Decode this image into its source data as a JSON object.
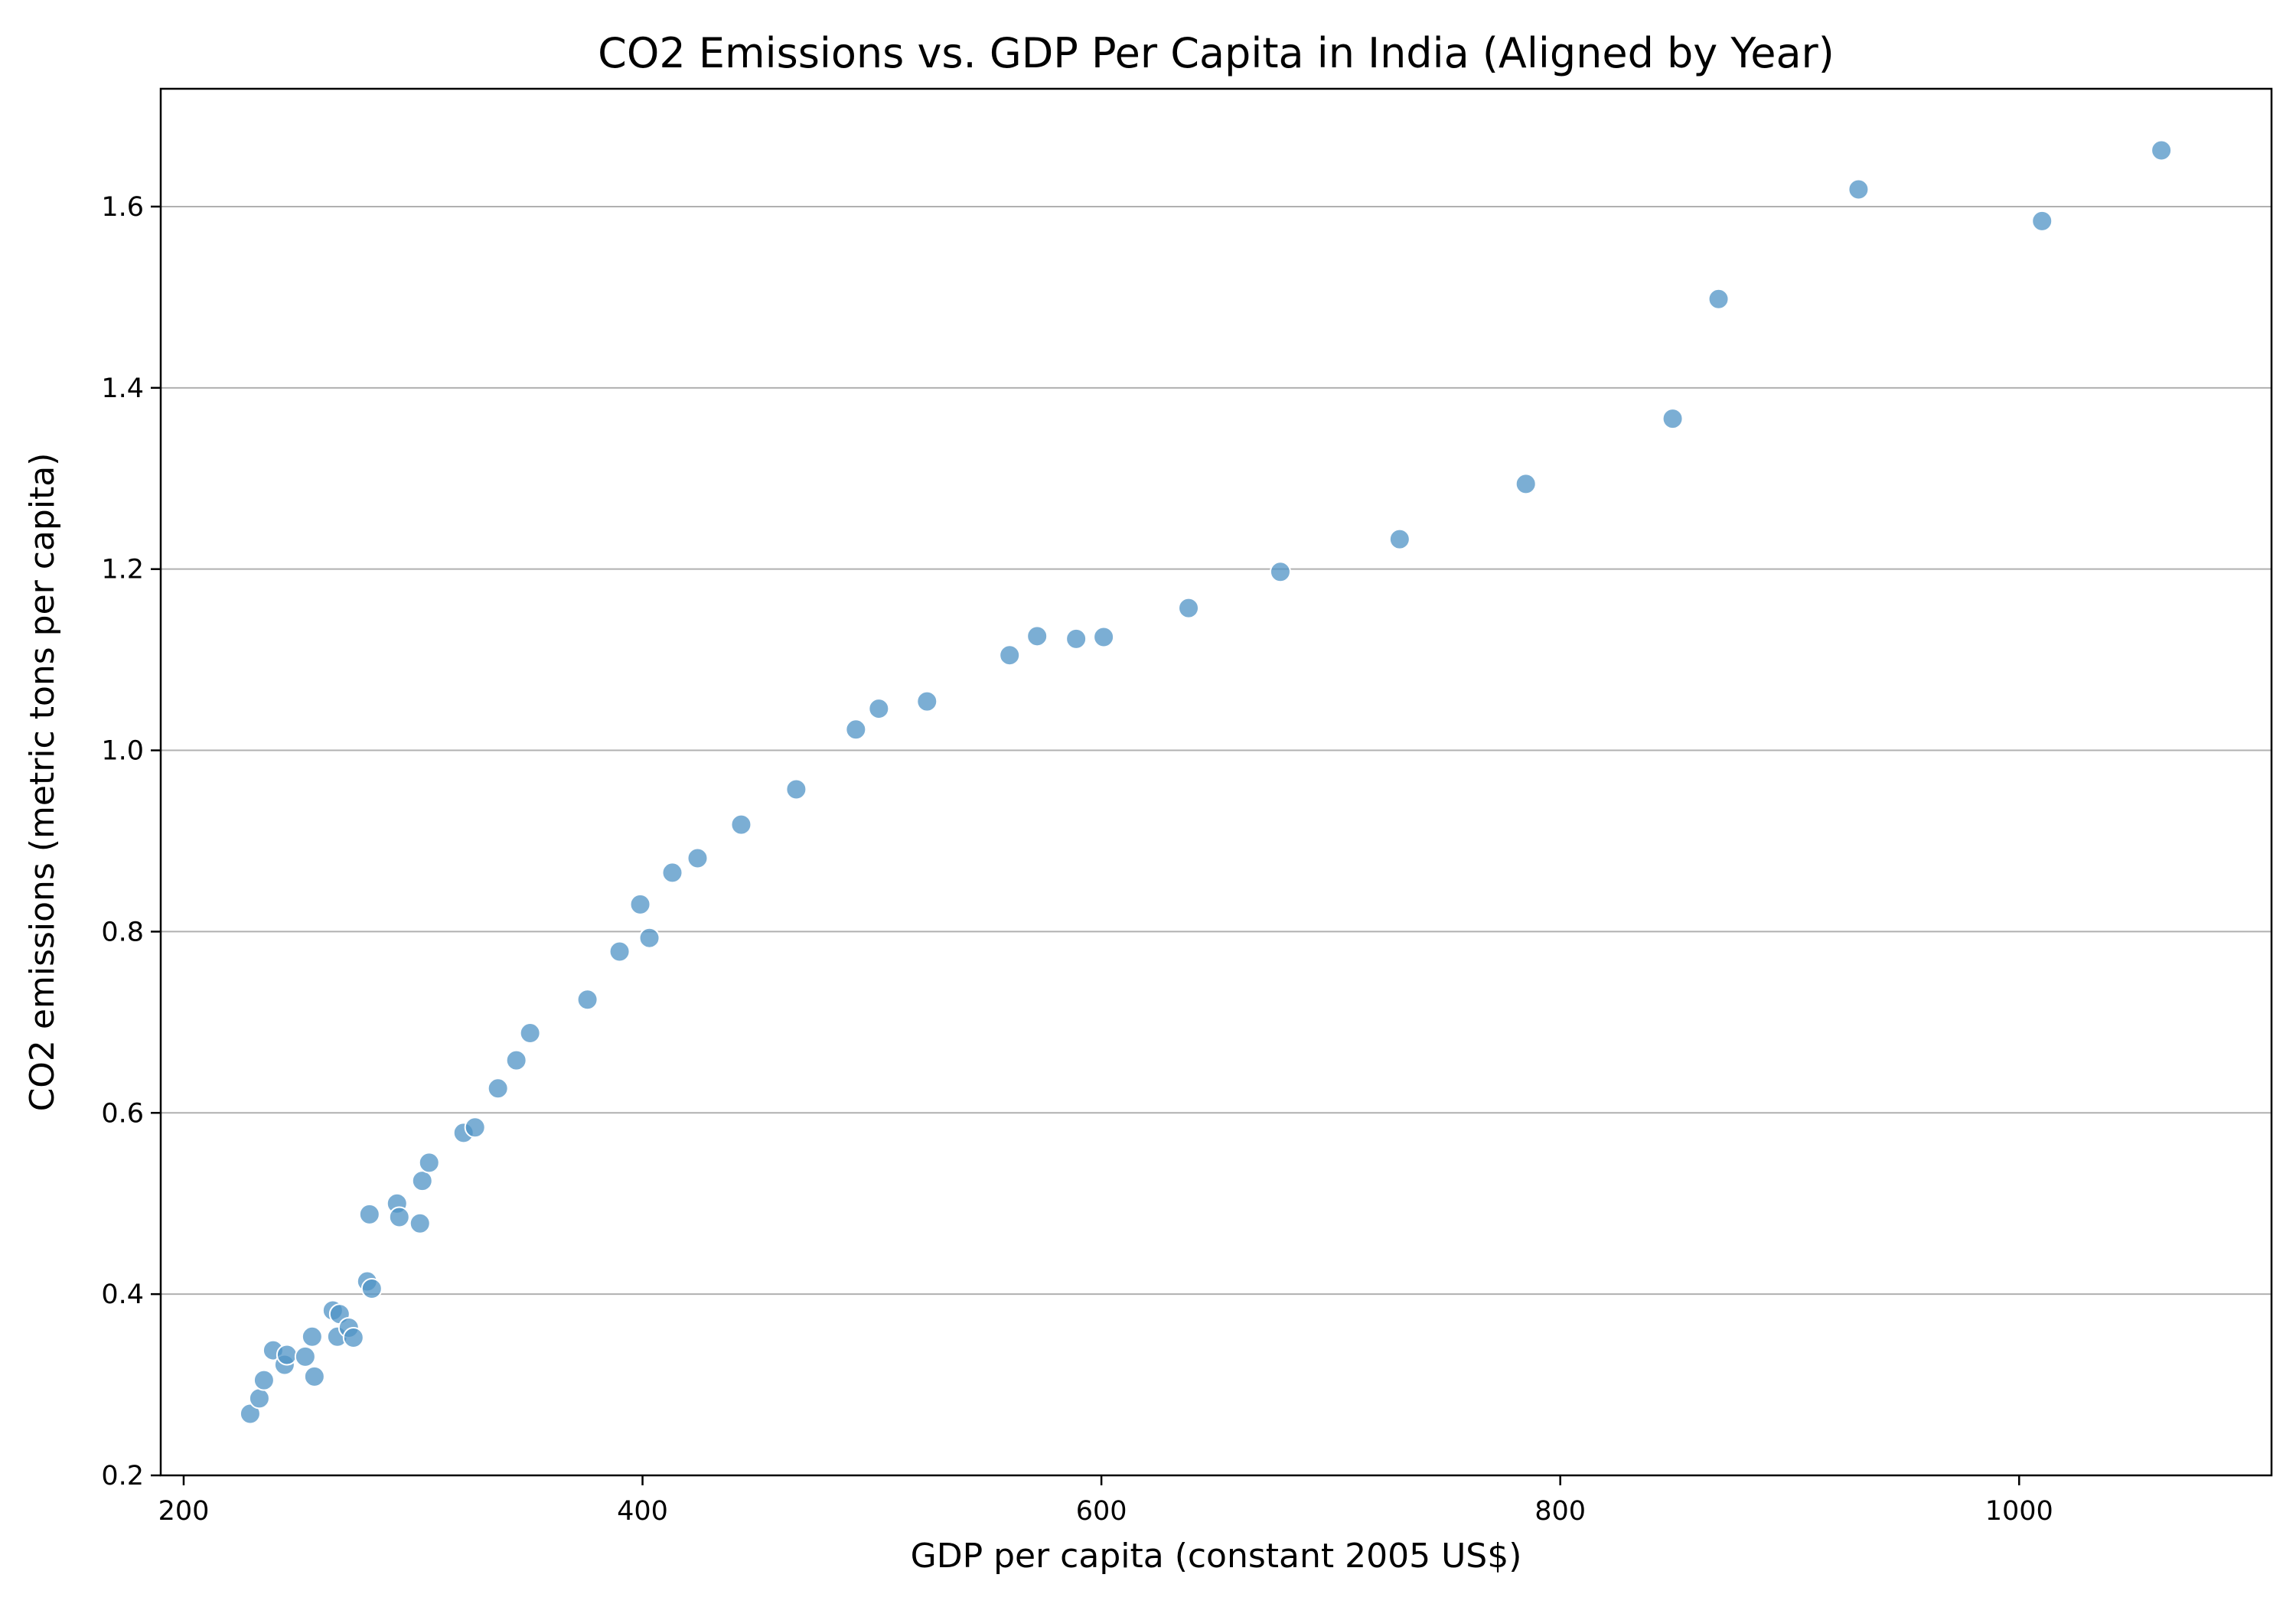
{
  "chart_data": {
    "type": "scatter",
    "title": "CO2 Emissions vs. GDP Per Capita in India (Aligned by Year)",
    "xlabel": "GDP per capita (constant 2005 US$)",
    "ylabel": "CO2 emissions (metric tons per capita)",
    "xlim": [
      190,
      1110
    ],
    "ylim": [
      0.2,
      1.73
    ],
    "x_ticks": [
      200,
      400,
      600,
      800,
      1000
    ],
    "y_ticks": [
      0.2,
      0.4,
      0.6,
      0.8,
      1.0,
      1.2,
      1.4,
      1.6
    ],
    "x_tick_labels": [
      "200",
      "400",
      "600",
      "800",
      "1000"
    ],
    "y_tick_labels": [
      "0.2",
      "0.4",
      "0.6",
      "0.8",
      "1.0",
      "1.2",
      "1.4",
      "1.6"
    ],
    "grid": "horizontal",
    "marker_color": "#4f93c6",
    "series": [
      {
        "points": [
          [
            229,
            0.268
          ],
          [
            233,
            0.285
          ],
          [
            235,
            0.305
          ],
          [
            239,
            0.338
          ],
          [
            244,
            0.322
          ],
          [
            245,
            0.333
          ],
          [
            253,
            0.331
          ],
          [
            256,
            0.353
          ],
          [
            257,
            0.309
          ],
          [
            265,
            0.382
          ],
          [
            267,
            0.353
          ],
          [
            268,
            0.378
          ],
          [
            272,
            0.363
          ],
          [
            274,
            0.352
          ],
          [
            280,
            0.414
          ],
          [
            281,
            0.488
          ],
          [
            282,
            0.406
          ],
          [
            293,
            0.5
          ],
          [
            294,
            0.485
          ],
          [
            303,
            0.478
          ],
          [
            304,
            0.525
          ],
          [
            307,
            0.545
          ],
          [
            322,
            0.578
          ],
          [
            327,
            0.584
          ],
          [
            337,
            0.627
          ],
          [
            345,
            0.658
          ],
          [
            351,
            0.688
          ],
          [
            376,
            0.725
          ],
          [
            390,
            0.778
          ],
          [
            399,
            0.83
          ],
          [
            403,
            0.793
          ],
          [
            413,
            0.865
          ],
          [
            424,
            0.881
          ],
          [
            443,
            0.918
          ],
          [
            467,
            0.957
          ],
          [
            493,
            1.023
          ],
          [
            503,
            1.046
          ],
          [
            524,
            1.054
          ],
          [
            560,
            1.105
          ],
          [
            572,
            1.126
          ],
          [
            589,
            1.123
          ],
          [
            601,
            1.125
          ],
          [
            638,
            1.157
          ],
          [
            678,
            1.197
          ],
          [
            730,
            1.233
          ],
          [
            785,
            1.294
          ],
          [
            849,
            1.366
          ],
          [
            869,
            1.498
          ],
          [
            930,
            1.619
          ],
          [
            1010,
            1.584
          ],
          [
            1062,
            1.662
          ]
        ]
      }
    ]
  }
}
